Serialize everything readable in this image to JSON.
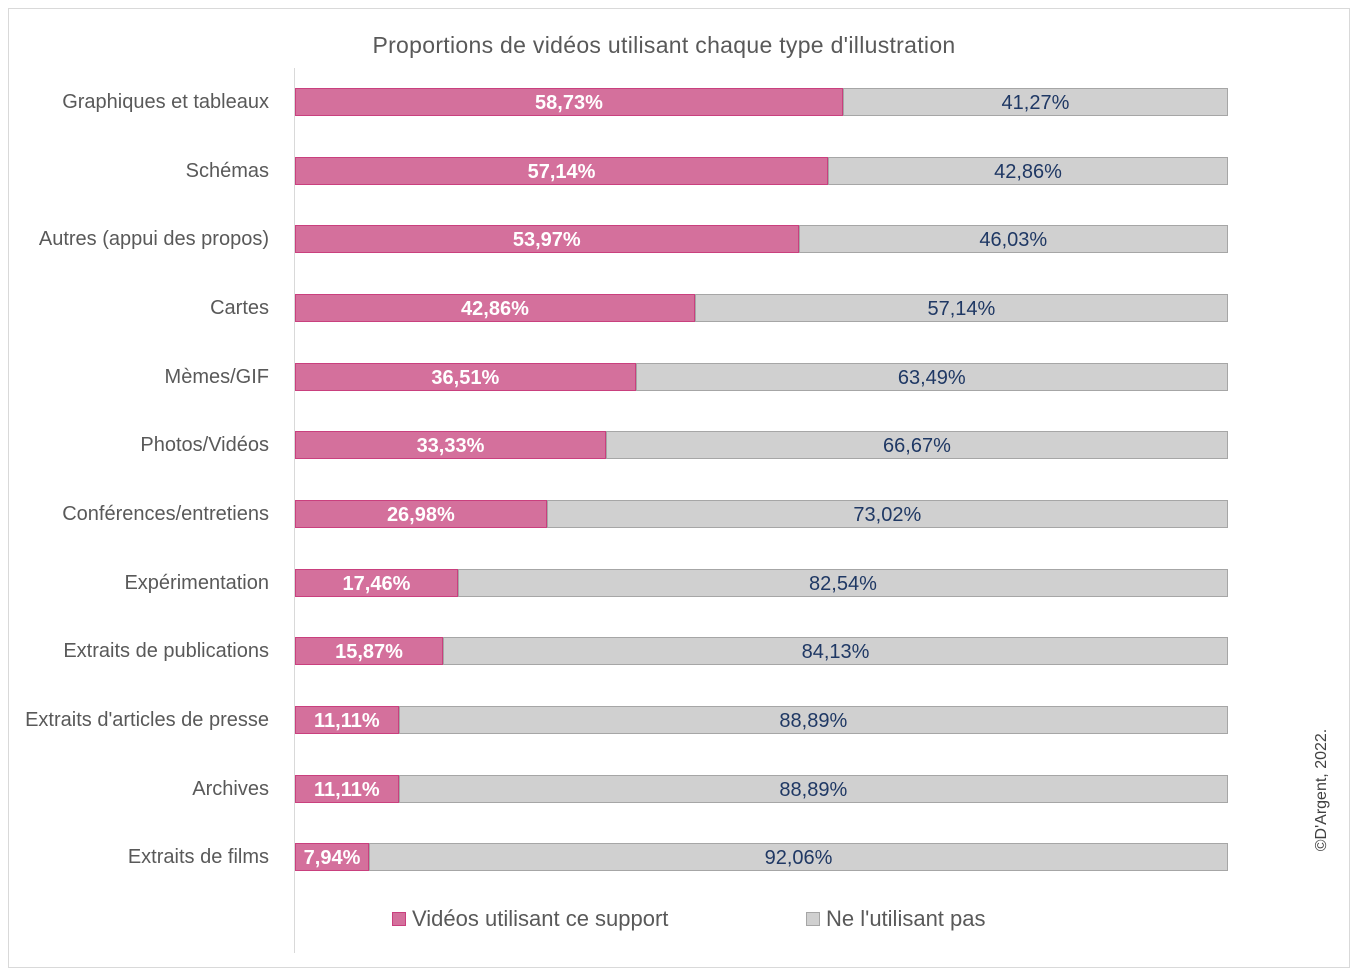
{
  "chart_data": {
    "type": "stacked_barh",
    "title": "Proportions de vidéos utilisant chaque type d'illustration",
    "categories": [
      "Graphiques et tableaux",
      "Schémas",
      "Autres (appui des propos)",
      "Cartes",
      "Mèmes/GIF",
      "Photos/Vidéos",
      "Conférences/entretiens",
      "Expérimentation",
      "Extraits de publications",
      "Extraits d'articles de presse",
      "Archives",
      "Extraits de films"
    ],
    "series": [
      {
        "name": "Vidéos utilisant ce support",
        "color": "#d4709c",
        "border": "#c9407e",
        "label_color": "#ffffff",
        "values": [
          58.73,
          57.14,
          53.97,
          42.86,
          36.51,
          33.33,
          26.98,
          17.46,
          15.87,
          11.11,
          11.11,
          7.94
        ],
        "value_labels": [
          "58,73%",
          "57,14%",
          "53,97%",
          "42,86%",
          "36,51%",
          "33,33%",
          "26,98%",
          "17,46%",
          "15,87%",
          "11,11%",
          "11,11%",
          "7,94%"
        ]
      },
      {
        "name": "Ne l'utilisant pas",
        "color": "#d0d0d0",
        "border": "#a6a6a6",
        "label_color": "#1f3864",
        "values": [
          41.27,
          42.86,
          46.03,
          57.14,
          63.49,
          66.67,
          73.02,
          82.54,
          84.13,
          88.89,
          88.89,
          92.06
        ],
        "value_labels": [
          "41,27%",
          "42,86%",
          "46,03%",
          "57,14%",
          "63,49%",
          "66,67%",
          "73,02%",
          "82,54%",
          "84,13%",
          "88,89%",
          "88,89%",
          "92,06%"
        ]
      }
    ],
    "legend": "bottom",
    "credit": "©D'Argent, 2022."
  }
}
